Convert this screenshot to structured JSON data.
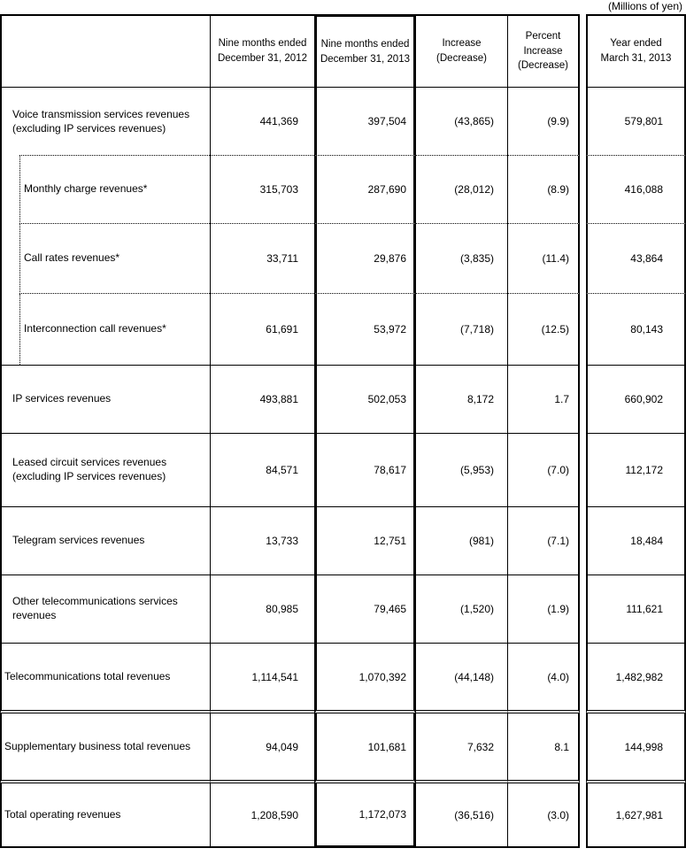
{
  "unit_note": "(Millions of yen)",
  "table": {
    "headers": [
      "Nine months ended\nDecember 31, 2012",
      "Nine months ended\nDecember 31, 2013",
      "Increase\n(Decrease)",
      "Percent\nIncrease\n(Decrease)",
      "Year ended\nMarch 31, 2013"
    ],
    "rows": [
      {
        "label": "Voice transmission services revenues\n(excluding IP services revenues)",
        "level": "level1",
        "values": [
          "441,369",
          "397,504",
          "(43,865)",
          "(9.9)",
          "579,801"
        ]
      },
      {
        "label": "Monthly charge revenues*",
        "level": "sub",
        "values": [
          "315,703",
          "287,690",
          "(28,012)",
          "(8.9)",
          "416,088"
        ]
      },
      {
        "label": "Call rates revenues*",
        "level": "sub",
        "values": [
          "33,711",
          "29,876",
          "(3,835)",
          "(11.4)",
          "43,864"
        ]
      },
      {
        "label": "Interconnection call revenues*",
        "level": "sub",
        "values": [
          "61,691",
          "53,972",
          "(7,718)",
          "(12.5)",
          "80,143"
        ]
      },
      {
        "label": "IP services revenues",
        "level": "level1",
        "values": [
          "493,881",
          "502,053",
          "8,172",
          "1.7",
          "660,902"
        ]
      },
      {
        "label": "Leased circuit services revenues\n(excluding IP services revenues)",
        "level": "level1",
        "values": [
          "84,571",
          "78,617",
          "(5,953)",
          "(7.0)",
          "112,172"
        ]
      },
      {
        "label": "Telegram services revenues",
        "level": "level1",
        "values": [
          "13,733",
          "12,751",
          "(981)",
          "(7.1)",
          "18,484"
        ]
      },
      {
        "label": "Other telecommunications services\nrevenues",
        "level": "level1",
        "values": [
          "80,985",
          "79,465",
          "(1,520)",
          "(1.9)",
          "111,621"
        ]
      },
      {
        "label": "Telecommunications total revenues",
        "level": "total",
        "values": [
          "1,114,541",
          "1,070,392",
          "(44,148)",
          "(4.0)",
          "1,482,982"
        ]
      },
      {
        "label": "Supplementary business total revenues",
        "level": "total",
        "values": [
          "94,049",
          "101,681",
          "7,632",
          "8.1",
          "144,998"
        ]
      },
      {
        "label": "Total operating revenues",
        "level": "total",
        "values": [
          "1,208,590",
          "1,172,073",
          "(36,516)",
          "(3.0)",
          "1,627,981"
        ]
      }
    ]
  }
}
